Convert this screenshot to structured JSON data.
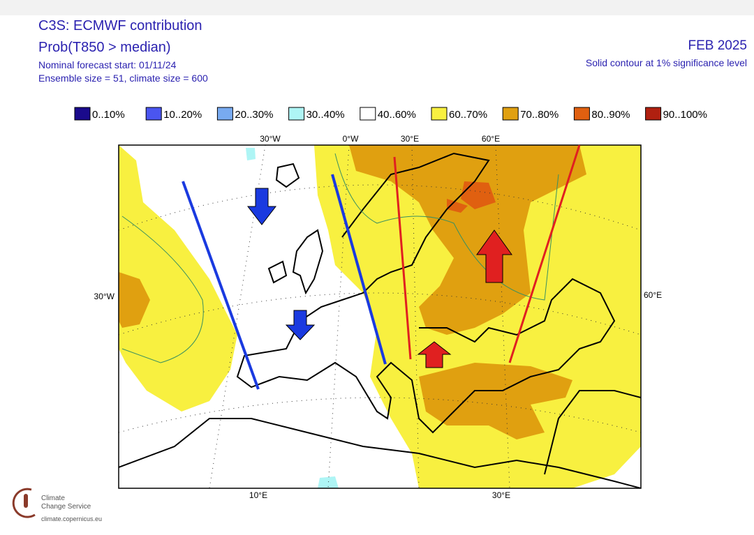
{
  "header": {
    "title": "C3S: ECMWF contribution",
    "subtitle": "Prob(T850 > median)",
    "forecast_start": "Nominal forecast start: 01/11/24",
    "sizes": "Ensemble size = 51, climate size = 600",
    "date": "FEB 2025",
    "note": "Solid contour at 1% significance level"
  },
  "legend": [
    {
      "label": "0..10%",
      "color": "#1a0a8c"
    },
    {
      "label": "10..20%",
      "color": "#4a55f0"
    },
    {
      "label": "20..30%",
      "color": "#78aaf0"
    },
    {
      "label": "30..40%",
      "color": "#aef5f5"
    },
    {
      "label": "40..60%",
      "color": "#ffffff"
    },
    {
      "label": "60..70%",
      "color": "#f8f040"
    },
    {
      "label": "70..80%",
      "color": "#e0a010"
    },
    {
      "label": "80..90%",
      "color": "#e06010"
    },
    {
      "label": "90..100%",
      "color": "#b02010"
    }
  ],
  "map": {
    "top_labels": [
      "30°W",
      "0°W",
      "30°E",
      "60°E"
    ],
    "left_label": "30°W",
    "right_label": "60°E",
    "bottom_labels": [
      "10°E",
      "30°E"
    ]
  },
  "footer": {
    "org_line1": "Climate",
    "org_line2": "Change Service",
    "url": "climate.copernicus.eu"
  }
}
